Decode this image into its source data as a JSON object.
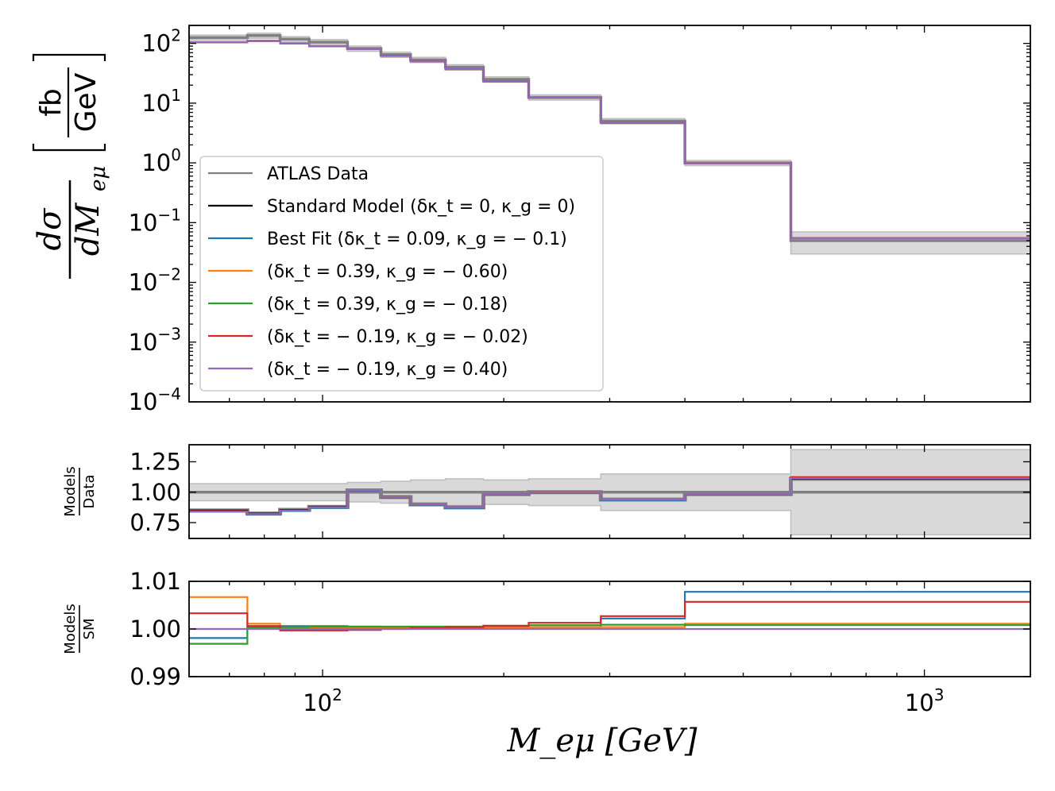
{
  "chart_data": {
    "type": "line",
    "drawstyle": "steps-post",
    "x_scale": "log",
    "xlim": [
      60,
      1500
    ],
    "xlabel": "M_eμ [GeV]",
    "x_tick_labels": [
      "10^2",
      "10^3"
    ],
    "bin_edges": [
      60,
      75,
      85,
      95,
      110,
      125,
      140,
      160,
      185,
      220,
      290,
      400,
      600,
      1500
    ],
    "legend": {
      "location": "lower-left",
      "entries": [
        {
          "key": "data",
          "label": "ATLAS Data",
          "color": "#808080"
        },
        {
          "key": "sm",
          "label": "Standard Model (δκ_t = 0, κ_g = 0)",
          "color": "#000000"
        },
        {
          "key": "best",
          "label": "Best Fit (δκ_t = 0.09, κ_g = − 0.1)",
          "color": "#1f77b4"
        },
        {
          "key": "p1",
          "label": "(δκ_t = 0.39, κ_g = − 0.60)",
          "color": "#ff7f0e"
        },
        {
          "key": "p2",
          "label": "(δκ_t = 0.39, κ_g = − 0.18)",
          "color": "#2ca02c"
        },
        {
          "key": "p3",
          "label": "(δκ_t = − 0.19, κ_g = − 0.02)",
          "color": "#d62728"
        },
        {
          "key": "p4",
          "label": "(δκ_t = − 0.19, κ_g = 0.40)",
          "color": "#9467bd"
        }
      ]
    },
    "panels": [
      {
        "name": "main",
        "y_scale": "log",
        "ylim": [
          0.0001,
          200
        ],
        "ylabel": "dσ/dM_eμ [fb/GeV]",
        "y_ticks": [
          0.0001,
          0.001,
          0.01,
          0.1,
          1,
          10,
          100
        ],
        "y_tick_labels": [
          {
            "base": "10",
            "exp": "−4"
          },
          {
            "base": "10",
            "exp": "−3"
          },
          {
            "base": "10",
            "exp": "−2"
          },
          {
            "base": "10",
            "exp": "−1"
          },
          {
            "base": "10",
            "exp": "0"
          },
          {
            "base": "10",
            "exp": "1"
          },
          {
            "base": "10",
            "exp": "2"
          }
        ],
        "data_values": [
          125,
          135,
          118,
          105,
          82,
          65,
          53,
          40,
          25,
          12.5,
          5.0,
          1.0,
          0.05
        ],
        "data_err_rel": 0.1,
        "data_err_rel_last": 0.4,
        "model_values": [
          105,
          110,
          100,
          90,
          80,
          62,
          50,
          37,
          23,
          12.3,
          4.7,
          0.98,
          0.055
        ]
      },
      {
        "name": "ratio_data",
        "y_scale": "linear",
        "ylim": [
          0.62,
          1.39
        ],
        "ylabel": "Models / Data",
        "y_ticks": [
          0.75,
          1.0,
          1.25
        ],
        "y_tick_labels": [
          "0.75",
          "1.00",
          "1.25"
        ],
        "band_halfwidth": [
          0.07,
          0.07,
          0.07,
          0.07,
          0.08,
          0.09,
          0.1,
          0.11,
          0.1,
          0.11,
          0.15,
          0.15,
          0.35
        ],
        "series": [
          {
            "key": "sm",
            "values": [
              0.85,
              0.825,
              0.855,
              0.88,
              1.015,
              0.96,
              0.9,
              0.875,
              0.985,
              1.0,
              0.94,
              0.985,
              1.11
            ]
          },
          {
            "key": "best",
            "values": [
              0.84,
              0.815,
              0.845,
              0.87,
              1.01,
              0.955,
              0.895,
              0.87,
              0.98,
              0.995,
              0.935,
              0.98,
              1.12
            ]
          },
          {
            "key": "p1",
            "values": [
              0.845,
              0.82,
              0.85,
              0.875,
              1.015,
              0.96,
              0.9,
              0.875,
              0.985,
              1.0,
              0.94,
              0.985,
              1.115
            ]
          },
          {
            "key": "p2",
            "values": [
              0.84,
              0.82,
              0.85,
              0.875,
              1.015,
              0.96,
              0.9,
              0.875,
              0.985,
              1.0,
              0.94,
              0.985,
              1.115
            ]
          },
          {
            "key": "p3",
            "values": [
              0.845,
              0.82,
              0.85,
              0.875,
              1.015,
              0.96,
              0.9,
              0.875,
              0.985,
              1.0,
              0.94,
              0.985,
              1.125
            ]
          },
          {
            "key": "p4",
            "values": [
              0.84,
              0.82,
              0.85,
              0.875,
              1.015,
              0.96,
              0.9,
              0.875,
              0.985,
              1.0,
              0.94,
              0.985,
              1.115
            ]
          }
        ]
      },
      {
        "name": "ratio_sm",
        "y_scale": "linear",
        "ylim": [
          0.99,
          1.01
        ],
        "ylabel": "Models / SM",
        "y_ticks": [
          0.99,
          1.0,
          1.01
        ],
        "y_tick_labels": [
          "0.99",
          "1.00",
          "1.01"
        ],
        "series": [
          {
            "key": "best",
            "values": [
              0.9981,
              1.0006,
              1.0006,
              1.0006,
              1.0005,
              1.0004,
              1.0003,
              1.0002,
              1.0003,
              1.0004,
              1.0022,
              1.0078,
              1.0078
            ]
          },
          {
            "key": "p1",
            "values": [
              1.0067,
              1.0011,
              1.0003,
              1.0002,
              1.0002,
              1.0002,
              1.0002,
              1.0002,
              1.0003,
              1.0004,
              1.0004,
              1.0011,
              1.0011
            ]
          },
          {
            "key": "p2",
            "values": [
              0.9969,
              1.0003,
              1.0004,
              1.0005,
              1.0005,
              1.0005,
              1.0005,
              1.0005,
              1.0006,
              1.0008,
              1.0009,
              1.0008,
              1.0008
            ]
          },
          {
            "key": "p3",
            "values": [
              1.0033,
              1.0006,
              0.9997,
              0.9997,
              0.9998,
              1.0,
              1.0002,
              1.0004,
              1.0007,
              1.0013,
              1.0027,
              1.0057,
              1.0057
            ]
          },
          {
            "key": "p4",
            "values": [
              1.0,
              1.0,
              1.0,
              1.0,
              1.0,
              1.0,
              1.0,
              1.0,
              1.0,
              1.0,
              1.0,
              1.0,
              1.0
            ]
          }
        ]
      }
    ]
  }
}
